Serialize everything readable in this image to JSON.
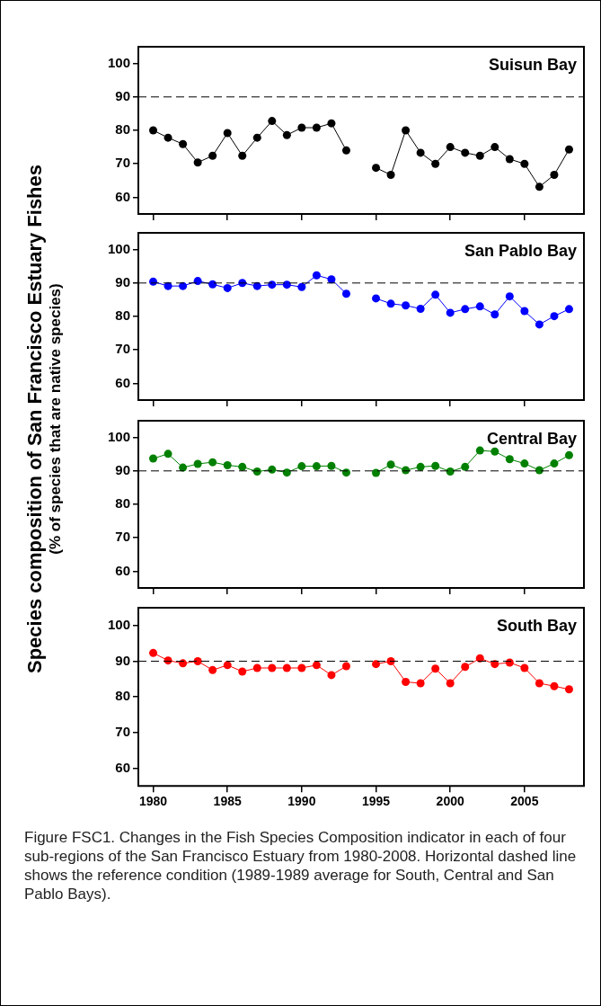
{
  "chart_data": [
    {
      "type": "line",
      "title": "Suisun Bay",
      "ylabel": "Species composition of San Francisco Estuary Fishes\n(% of species that are native species)",
      "x": [
        1980,
        1981,
        1982,
        1983,
        1984,
        1985,
        1986,
        1987,
        1988,
        1989,
        1990,
        1991,
        1992,
        1993,
        1994,
        1995,
        1996,
        1997,
        1998,
        1999,
        2000,
        2001,
        2002,
        2003,
        2004,
        2005,
        2006,
        2007,
        2008
      ],
      "series": [
        {
          "color": "#000000",
          "values": [
            80,
            77.8,
            75.9,
            70.4,
            72.4,
            79.2,
            72.4,
            77.8,
            82.8,
            78.6,
            80.8,
            80.8,
            82.1,
            74.0,
            null,
            68.8,
            66.7,
            80,
            73.3,
            70,
            75.0,
            73.3,
            72.4,
            75,
            71.4,
            70,
            63.1,
            66.7,
            74.3
          ]
        }
      ],
      "xlim": [
        1979,
        2009
      ],
      "xticks": [
        1980,
        1985,
        1990,
        1995,
        2000,
        2005
      ],
      "ylim": [
        55,
        105
      ],
      "yticks": [
        60,
        70,
        80,
        90,
        100
      ],
      "tick_labels": "y",
      "marker": "circle",
      "ref_lines": [
        {
          "axis": "y",
          "value": 90,
          "color": "#000000",
          "line_style": "dashed"
        }
      ]
    },
    {
      "type": "line",
      "title": "San Pablo Bay",
      "x": [
        1980,
        1981,
        1982,
        1983,
        1984,
        1985,
        1986,
        1987,
        1988,
        1989,
        1990,
        1991,
        1992,
        1993,
        1994,
        1995,
        1996,
        1997,
        1998,
        1999,
        2000,
        2001,
        2002,
        2003,
        2004,
        2005,
        2006,
        2007,
        2008
      ],
      "series": [
        {
          "color": "#0000ff",
          "values": [
            90.4,
            89.1,
            89.1,
            90.6,
            89.6,
            88.5,
            90,
            89.1,
            89.5,
            89.5,
            88.8,
            92.3,
            91.1,
            86.8,
            null,
            85.4,
            83.8,
            83.3,
            82.3,
            86.5,
            81.1,
            82.2,
            83.0,
            80.6,
            86.0,
            81.6,
            77.6,
            80.1,
            82.2
          ]
        }
      ],
      "xlim": [
        1979,
        2009
      ],
      "xticks": [
        1980,
        1985,
        1990,
        1995,
        2000,
        2005
      ],
      "ylim": [
        55,
        105
      ],
      "yticks": [
        60,
        70,
        80,
        90,
        100
      ],
      "tick_labels": "y",
      "marker": "circle",
      "ref_lines": [
        {
          "axis": "y",
          "value": 90,
          "color": "#000000",
          "line_style": "dashed"
        }
      ]
    },
    {
      "type": "line",
      "title": "Central Bay",
      "x": [
        1980,
        1981,
        1982,
        1983,
        1984,
        1985,
        1986,
        1987,
        1988,
        1989,
        1990,
        1991,
        1992,
        1993,
        1994,
        1995,
        1996,
        1997,
        1998,
        1999,
        2000,
        2001,
        2002,
        2003,
        2004,
        2005,
        2006,
        2007,
        2008
      ],
      "series": [
        {
          "color": "#008000",
          "values": [
            93.7,
            95.1,
            91.0,
            92.1,
            92.6,
            91.7,
            91.2,
            89.8,
            90.4,
            89.5,
            91.4,
            91.4,
            91.5,
            89.5,
            null,
            89.4,
            91.9,
            90.2,
            91.2,
            91.5,
            89.8,
            91.2,
            96.1,
            95.8,
            93.5,
            92.2,
            90.2,
            92.2,
            94.7
          ]
        }
      ],
      "xlim": [
        1979,
        2009
      ],
      "xticks": [
        1980,
        1985,
        1990,
        1995,
        2000,
        2005
      ],
      "ylim": [
        55,
        105
      ],
      "yticks": [
        60,
        70,
        80,
        90,
        100
      ],
      "tick_labels": "y",
      "marker": "circle",
      "ref_lines": [
        {
          "axis": "y",
          "value": 90,
          "color": "#000000",
          "line_style": "dashed"
        }
      ]
    },
    {
      "type": "line",
      "title": "South Bay",
      "x": [
        1980,
        1981,
        1982,
        1983,
        1984,
        1985,
        1986,
        1987,
        1988,
        1989,
        1990,
        1991,
        1992,
        1993,
        1994,
        1995,
        1996,
        1997,
        1998,
        1999,
        2000,
        2001,
        2002,
        2003,
        2004,
        2005,
        2006,
        2007,
        2008
      ],
      "series": [
        {
          "color": "#ff0000",
          "values": [
            92.3,
            90.2,
            89.4,
            90,
            87.5,
            88.9,
            87.1,
            88.1,
            88.1,
            88.1,
            88.1,
            88.9,
            86.1,
            88.6,
            null,
            89.2,
            90,
            84.2,
            83.8,
            87.9,
            83.8,
            88.4,
            90.8,
            89.2,
            89.6,
            88.1,
            83.8,
            83.0,
            82.1
          ]
        }
      ],
      "xlim": [
        1979,
        2009
      ],
      "xticks": [
        1980,
        1985,
        1990,
        1995,
        2000,
        2005
      ],
      "ylim": [
        55,
        105
      ],
      "yticks": [
        60,
        70,
        80,
        90,
        100
      ],
      "marker": "circle",
      "ref_lines": [
        {
          "axis": "y",
          "value": 90,
          "color": "#000000",
          "line_style": "dashed"
        }
      ],
      "annotations": [
        "Figure FSC1. Changes in the Fish Species Composition indicator in each of four sub-regions of the San Francisco Estuary from 1980-2008. Horizontal dashed line shows the reference condition (1989-1989 average for South, Central and San Pablo Bays)."
      ]
    }
  ]
}
